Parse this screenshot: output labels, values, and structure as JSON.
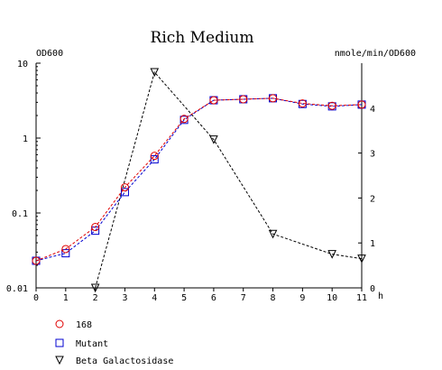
{
  "chart_data": {
    "type": "line",
    "title": "Rich Medium",
    "y_left_label": "OD600",
    "y_right_label": "nmole/min/OD600",
    "x_unit_label": "h",
    "x_ticks": [
      0,
      1,
      2,
      3,
      4,
      5,
      6,
      7,
      8,
      9,
      10,
      11
    ],
    "x_range": [
      0,
      11
    ],
    "y_left_scale": "log",
    "y_left_range": [
      0.01,
      10
    ],
    "y_left_ticks": [
      {
        "value": 10,
        "label": "10"
      },
      {
        "value": 1,
        "label": "1"
      },
      {
        "value": 0.1,
        "label": "0.1"
      },
      {
        "value": 0.01,
        "label": "0.01"
      }
    ],
    "y_right_range": [
      0,
      5
    ],
    "y_right_ticks": [
      0,
      1,
      2,
      3,
      4
    ],
    "grid": false,
    "legend_position": "bottom-left",
    "series": [
      {
        "name": "168",
        "axis": "left",
        "marker": "circle",
        "color": "#e00000",
        "x": [
          0,
          1,
          2,
          3,
          4,
          5,
          6,
          7,
          8,
          9,
          10,
          11
        ],
        "y": [
          0.023,
          0.033,
          0.065,
          0.22,
          0.58,
          1.8,
          3.2,
          3.3,
          3.4,
          2.9,
          2.7,
          2.8
        ]
      },
      {
        "name": "Mutant",
        "axis": "left",
        "marker": "square",
        "color": "#0000d0",
        "x": [
          0,
          1,
          2,
          3,
          4,
          5,
          6,
          7,
          8,
          9,
          10,
          11
        ],
        "y": [
          0.023,
          0.029,
          0.058,
          0.19,
          0.52,
          1.75,
          3.2,
          3.3,
          3.4,
          2.85,
          2.65,
          2.8
        ]
      },
      {
        "name": "Beta Galactosidase",
        "axis": "right",
        "marker": "triangle-down",
        "color": "#000000",
        "x": [
          2,
          4,
          6,
          8,
          10,
          11
        ],
        "y": [
          0.0,
          4.8,
          3.3,
          1.2,
          0.75,
          0.65
        ]
      }
    ]
  }
}
